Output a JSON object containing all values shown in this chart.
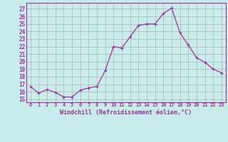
{
  "x": [
    0,
    1,
    2,
    3,
    4,
    5,
    6,
    7,
    8,
    9,
    10,
    11,
    12,
    13,
    14,
    15,
    16,
    17,
    18,
    19,
    20,
    21,
    22,
    23
  ],
  "y": [
    16.7,
    15.8,
    16.3,
    15.9,
    15.3,
    15.3,
    16.2,
    16.5,
    16.7,
    18.8,
    22.0,
    21.8,
    23.3,
    24.8,
    25.0,
    25.0,
    26.4,
    27.1,
    23.8,
    22.2,
    20.5,
    19.9,
    19.0,
    18.5
  ],
  "line_color": "#993399",
  "marker": "+",
  "bg_color": "#c8ecec",
  "grid_color": "#b0b0b0",
  "xlabel": "Windchill (Refroidissement éolien,°C)",
  "ylabel_ticks": [
    15,
    16,
    17,
    18,
    19,
    20,
    21,
    22,
    23,
    24,
    25,
    26,
    27
  ],
  "ylim": [
    14.6,
    27.8
  ],
  "xlim": [
    -0.5,
    23.5
  ]
}
